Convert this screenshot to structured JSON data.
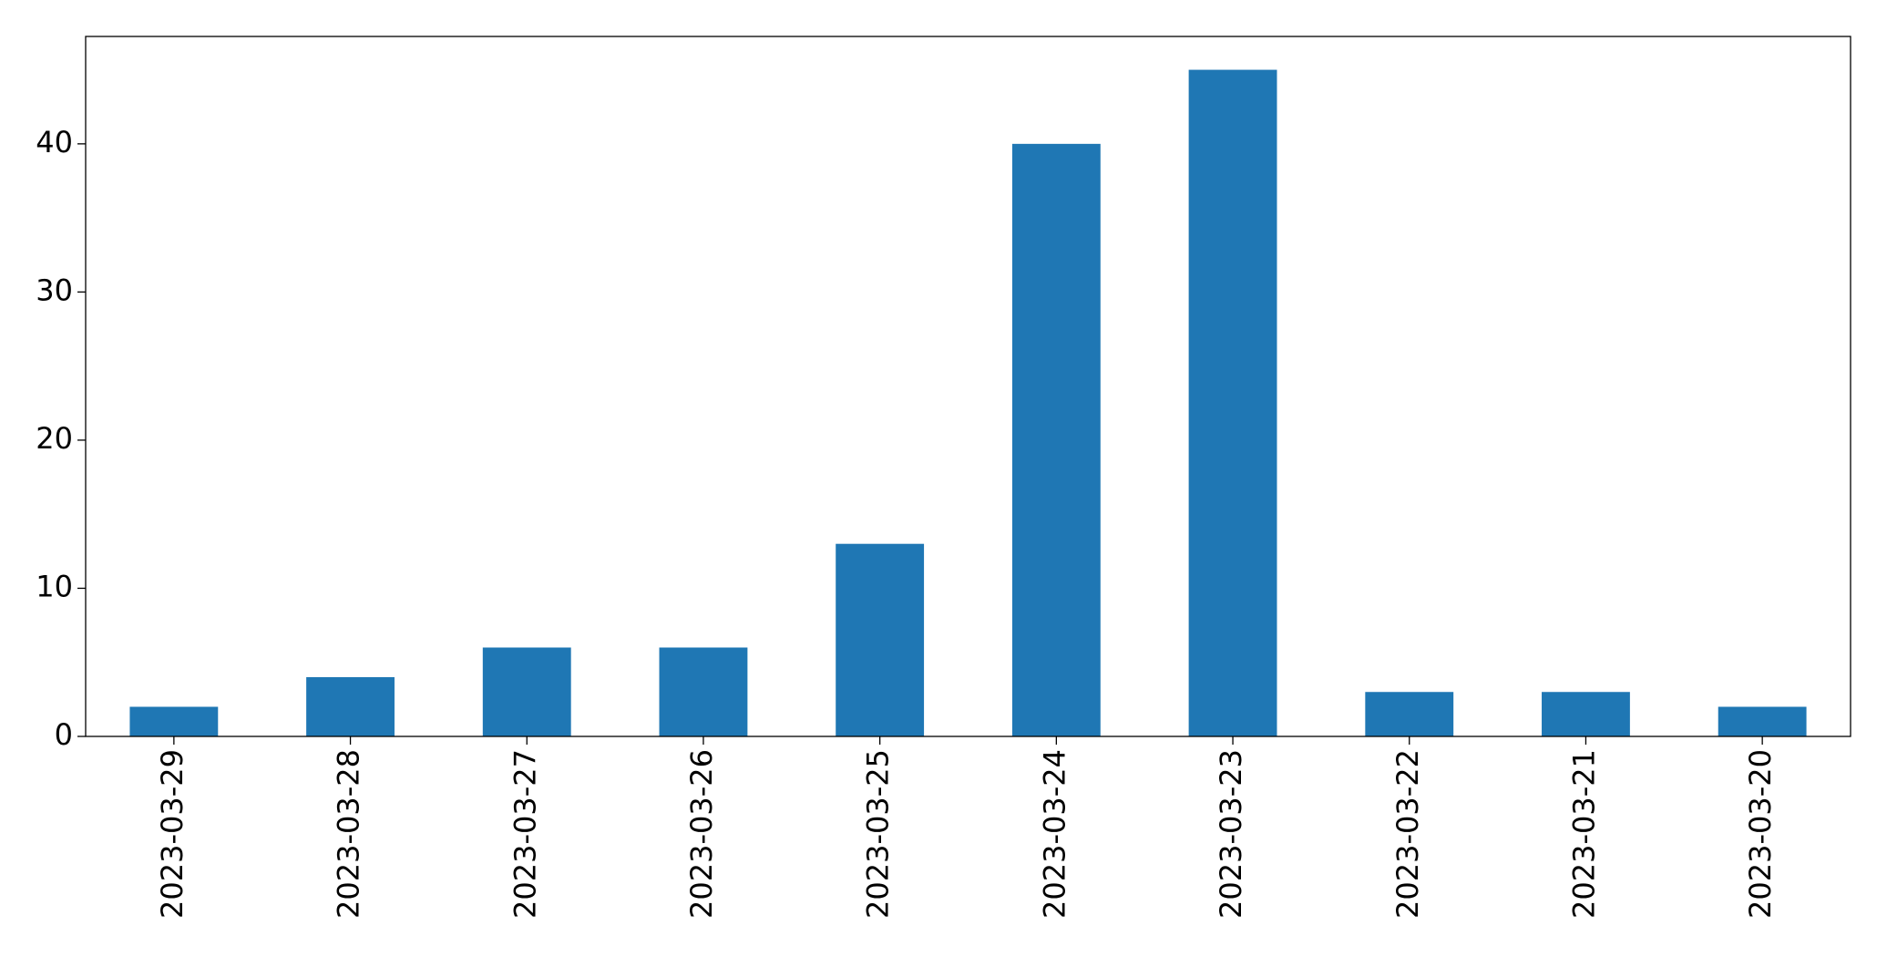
{
  "chart_data": {
    "type": "bar",
    "categories": [
      "2023-03-29",
      "2023-03-28",
      "2023-03-27",
      "2023-03-26",
      "2023-03-25",
      "2023-03-24",
      "2023-03-23",
      "2023-03-22",
      "2023-03-21",
      "2023-03-20"
    ],
    "values": [
      2,
      4,
      6,
      6,
      13,
      40,
      45,
      3,
      3,
      2
    ],
    "color": "#1f77b4",
    "ylim": [
      0,
      47.25
    ],
    "yticks": [
      0,
      10,
      20,
      30,
      40
    ],
    "grid": false
  }
}
